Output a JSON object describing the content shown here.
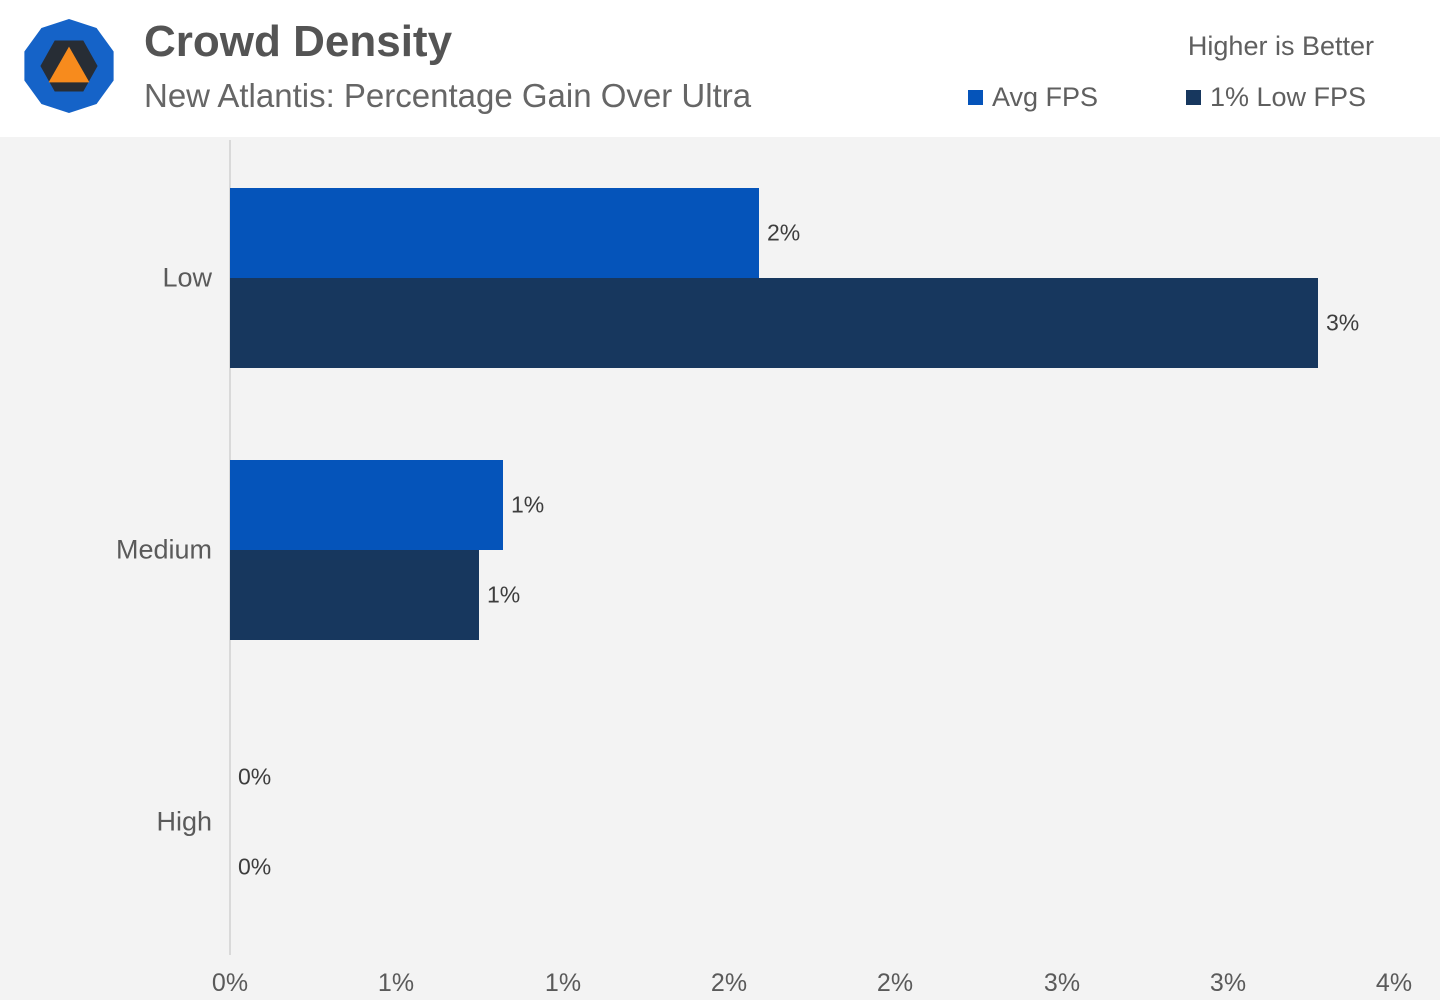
{
  "header": {
    "title": "Crowd Density",
    "subtitle": "New Atlantis: Percentage Gain Over Ultra",
    "note": "Higher is Better",
    "logo_colors": {
      "outer": "#1563c8",
      "hexagon": "#272d35",
      "triangle": "#f78b1d"
    }
  },
  "legend": [
    {
      "label": "Avg FPS",
      "color": "#0554ba"
    },
    {
      "label": "1% Low FPS",
      "color": "#17375e"
    }
  ],
  "colors": {
    "avg_series": "#0554ba",
    "low_series": "#17375e",
    "chart_background": "#f3f3f3",
    "header_background": "#ffffff",
    "axis_line": "#d9d9d9"
  },
  "chart_data": {
    "type": "bar",
    "orientation": "horizontal",
    "title": "Crowd Density",
    "subtitle": "New Atlantis: Percentage Gain Over Ultra",
    "annotation": "Higher is Better",
    "categories": [
      "Low",
      "Medium",
      "High"
    ],
    "series": [
      {
        "name": "Avg FPS",
        "color": "#0554ba",
        "values": [
          1.59,
          0.82,
          0
        ],
        "labels": [
          "2%",
          "1%",
          "0%"
        ]
      },
      {
        "name": "1% Low FPS",
        "color": "#17375e",
        "values": [
          3.27,
          0.75,
          0
        ],
        "labels": [
          "3%",
          "1%",
          "0%"
        ]
      }
    ],
    "x_axis": {
      "min": 0,
      "max": 3.5,
      "tick_step": 0.5,
      "tick_labels": [
        "0%",
        "1%",
        "1%",
        "2%",
        "2%",
        "3%",
        "3%",
        "4%"
      ],
      "unit": "percent"
    },
    "legend_position": "top-right",
    "grid": false,
    "higher_is_better": true
  }
}
